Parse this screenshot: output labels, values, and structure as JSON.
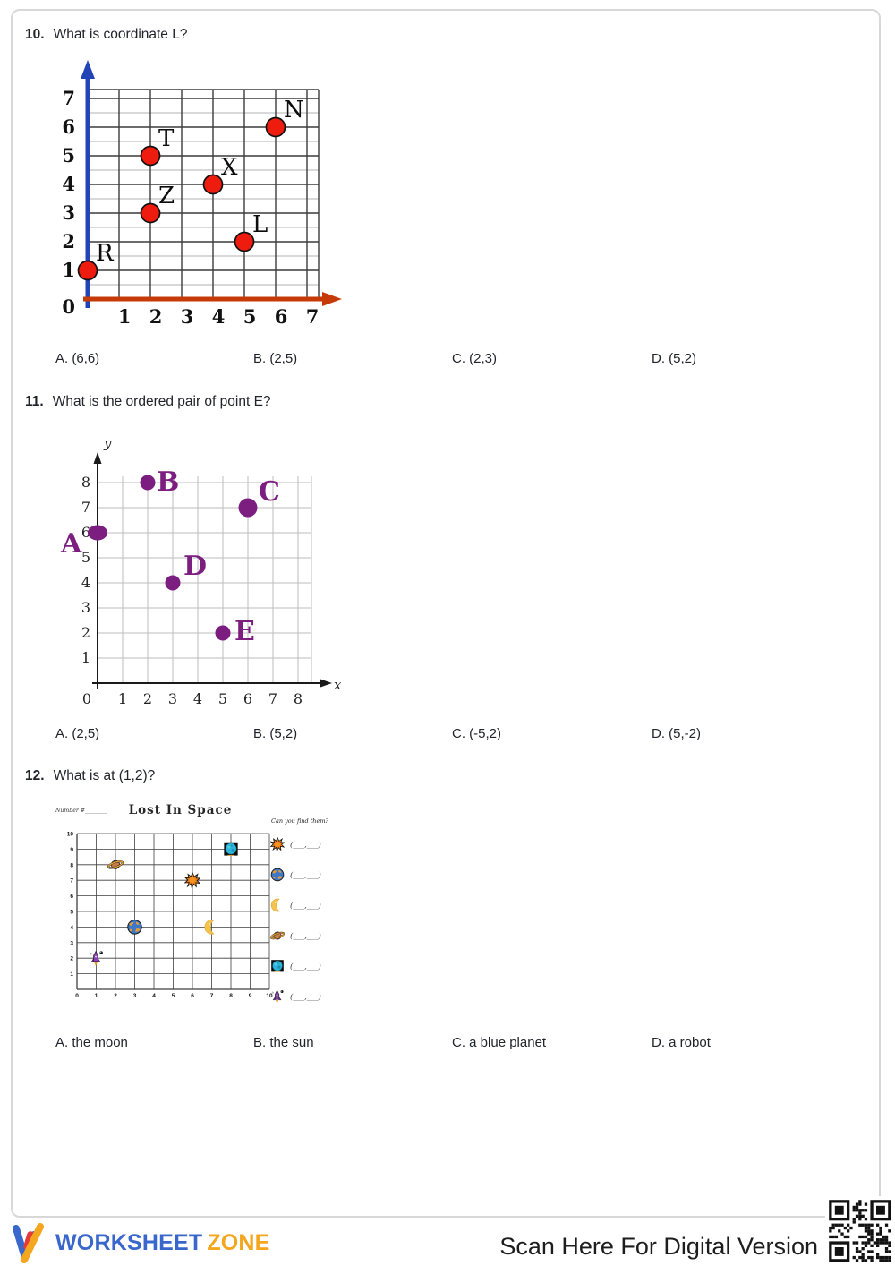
{
  "questions": [
    {
      "number": "10.",
      "text": "What is coordinate L?",
      "choices": [
        "A. (6,6)",
        "B. (2,5)",
        "C. (2,3)",
        "D. (5,2)"
      ]
    },
    {
      "number": "11.",
      "text": "What is the ordered pair of point E?",
      "choices": [
        "A. (2,5)",
        "B. (5,2)",
        "C. (-5,2)",
        "D. (5,-2)"
      ]
    },
    {
      "number": "12.",
      "text": "What is at (1,2)?",
      "choices": [
        "A. the moon",
        "B. the sun",
        "C. a blue planet",
        "D. a robot"
      ]
    }
  ],
  "chart_data": [
    {
      "id": "q10-coordinate-grid",
      "type": "scatter",
      "xlim": [
        0,
        7
      ],
      "ylim": [
        0,
        7
      ],
      "x_ticks": [
        0,
        1,
        2,
        3,
        4,
        5,
        6,
        7
      ],
      "y_ticks": [
        0,
        1,
        2,
        3,
        4,
        5,
        6,
        7
      ],
      "points": [
        {
          "label": "R",
          "x": 0,
          "y": 1
        },
        {
          "label": "T",
          "x": 2,
          "y": 5
        },
        {
          "label": "Z",
          "x": 2,
          "y": 3
        },
        {
          "label": "X",
          "x": 4,
          "y": 4
        },
        {
          "label": "L",
          "x": 5,
          "y": 2
        },
        {
          "label": "N",
          "x": 6,
          "y": 6
        }
      ],
      "point_color": "#ee1c0f",
      "x_axis_color": "#c63a08",
      "y_axis_color": "#2344b4",
      "grid_color": "#3c3c3c"
    },
    {
      "id": "q11-coordinate-grid",
      "type": "scatter",
      "xlabel": "x",
      "ylabel": "y",
      "xlim": [
        0,
        8
      ],
      "ylim": [
        0,
        8
      ],
      "x_ticks": [
        0,
        1,
        2,
        3,
        4,
        5,
        6,
        7,
        8
      ],
      "y_ticks": [
        1,
        2,
        3,
        4,
        5,
        6,
        7,
        8
      ],
      "points": [
        {
          "label": "A",
          "x": 0,
          "y": 6
        },
        {
          "label": "B",
          "x": 2,
          "y": 8
        },
        {
          "label": "C",
          "x": 6,
          "y": 7
        },
        {
          "label": "D",
          "x": 3,
          "y": 4
        },
        {
          "label": "E",
          "x": 5,
          "y": 2
        }
      ],
      "point_color": "#7c1d80",
      "grid_color": "#bdbdbd",
      "axis_color": "#1a1a1a"
    },
    {
      "id": "q12-lost-in-space-grid",
      "type": "scatter",
      "title": "Lost In Space",
      "corner_label": "Number #________",
      "side_prompt": "Can you find them?",
      "xlim": [
        0,
        10
      ],
      "ylim": [
        0,
        10
      ],
      "x_ticks": [
        0,
        1,
        2,
        3,
        4,
        5,
        6,
        7,
        8,
        9,
        10
      ],
      "y_ticks": [
        1,
        2,
        3,
        4,
        5,
        6,
        7,
        8,
        9,
        10
      ],
      "points": [
        {
          "icon": "blue-planet",
          "x": 8,
          "y": 9
        },
        {
          "icon": "saturn",
          "x": 2,
          "y": 8
        },
        {
          "icon": "sun",
          "x": 6,
          "y": 7
        },
        {
          "icon": "earth",
          "x": 3,
          "y": 4
        },
        {
          "icon": "moon",
          "x": 7,
          "y": 4
        },
        {
          "icon": "rocket",
          "x": 1,
          "y": 2
        }
      ],
      "legend": [
        {
          "icon": "sun",
          "blank": "(___,___)"
        },
        {
          "icon": "earth",
          "blank": "(___,___)"
        },
        {
          "icon": "moon",
          "blank": "(___,___)"
        },
        {
          "icon": "saturn",
          "blank": "(___,___)"
        },
        {
          "icon": "blue-planet",
          "blank": "(___,___)"
        },
        {
          "icon": "rocket",
          "blank": "(___,___)"
        }
      ],
      "grid_color": "#3f3f3f"
    }
  ],
  "footer": {
    "brand": [
      {
        "text": "WORKSHEET",
        "color": "#3A67CB"
      },
      {
        "text": "ZONE",
        "color": "#F4A61E"
      }
    ],
    "scan_text": "Scan Here For Digital Version"
  }
}
